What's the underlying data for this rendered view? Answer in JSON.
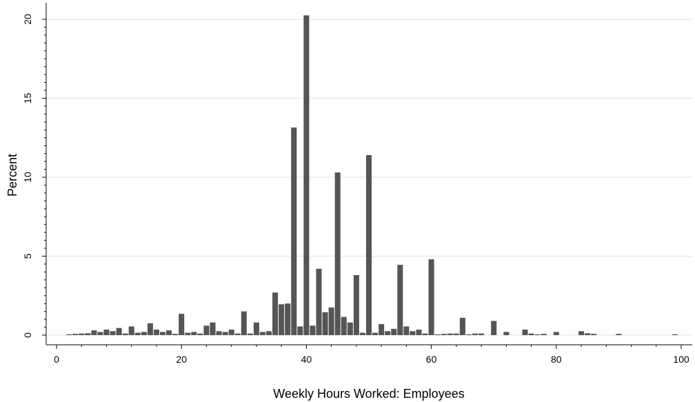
{
  "chart_data": {
    "type": "bar",
    "xlabel": "Weekly Hours Worked:  Employees",
    "ylabel": "Percent",
    "xlim": [
      0,
      100
    ],
    "ylim": [
      0,
      20
    ],
    "xticks": [
      0,
      20,
      40,
      60,
      80,
      100
    ],
    "yticks": [
      0,
      5,
      10,
      15,
      20
    ],
    "grid": true,
    "bar_color": "#555555",
    "grid_color": "#e4eef0",
    "x": [
      2,
      3,
      4,
      5,
      6,
      7,
      8,
      9,
      10,
      11,
      12,
      13,
      14,
      15,
      16,
      17,
      18,
      19,
      20,
      21,
      22,
      23,
      24,
      25,
      26,
      27,
      28,
      29,
      30,
      31,
      32,
      33,
      34,
      35,
      36,
      37,
      38,
      39,
      40,
      41,
      42,
      43,
      44,
      45,
      46,
      47,
      48,
      49,
      50,
      51,
      52,
      53,
      54,
      55,
      56,
      57,
      58,
      59,
      60,
      61,
      62,
      63,
      64,
      65,
      66,
      67,
      68,
      70,
      72,
      75,
      76,
      77,
      78,
      80,
      84,
      85,
      86,
      90,
      99
    ],
    "values": [
      0.05,
      0.08,
      0.1,
      0.12,
      0.3,
      0.2,
      0.35,
      0.25,
      0.45,
      0.1,
      0.55,
      0.15,
      0.2,
      0.75,
      0.35,
      0.2,
      0.3,
      0.08,
      1.35,
      0.15,
      0.2,
      0.1,
      0.6,
      0.8,
      0.25,
      0.2,
      0.35,
      0.1,
      1.5,
      0.1,
      0.8,
      0.2,
      0.25,
      2.7,
      1.95,
      2.0,
      13.15,
      0.55,
      20.25,
      0.6,
      4.2,
      1.45,
      1.75,
      10.3,
      1.15,
      0.8,
      3.8,
      0.15,
      11.4,
      0.15,
      0.7,
      0.25,
      0.4,
      4.45,
      0.55,
      0.25,
      0.35,
      0.1,
      4.8,
      0.05,
      0.08,
      0.1,
      0.1,
      1.1,
      0.05,
      0.1,
      0.1,
      0.9,
      0.2,
      0.35,
      0.1,
      0.05,
      0.08,
      0.2,
      0.25,
      0.12,
      0.08,
      0.08,
      0.05
    ]
  }
}
